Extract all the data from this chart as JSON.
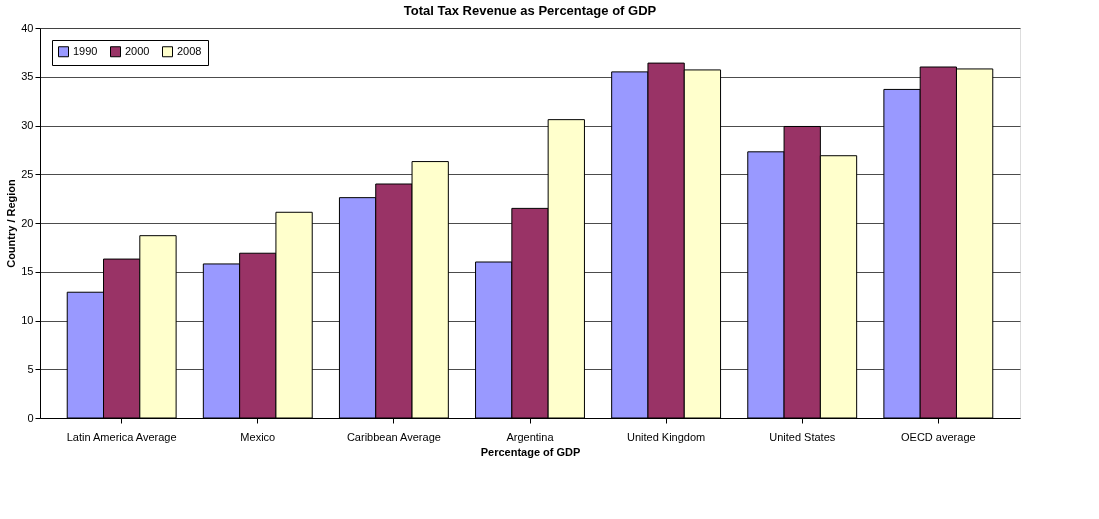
{
  "chart_data": {
    "type": "bar",
    "title": "Total Tax Revenue as Percentage of GDP",
    "xlabel": "Percentage of GDP",
    "ylabel": "Country / Region",
    "categories": [
      "Latin America Average",
      "Mexico",
      "Caribbean Average",
      "Argentina",
      "United Kingdom",
      "United States",
      "OECD average"
    ],
    "series": [
      {
        "name": "1990",
        "color": "#9999ff",
        "values": [
          12.9,
          15.8,
          22.6,
          16.0,
          35.5,
          27.3,
          33.7
        ]
      },
      {
        "name": "2000",
        "color": "#993366",
        "values": [
          16.3,
          16.9,
          24.0,
          21.5,
          36.4,
          29.9,
          36.0
        ]
      },
      {
        "name": "2008",
        "color": "#ffffcc",
        "values": [
          18.7,
          21.1,
          26.3,
          30.6,
          35.7,
          26.9,
          35.8
        ]
      }
    ],
    "ylim": [
      0,
      40
    ],
    "yticks": [
      0,
      5,
      10,
      15,
      20,
      25,
      30,
      35,
      40
    ],
    "grid": "y",
    "legend": "top left"
  }
}
